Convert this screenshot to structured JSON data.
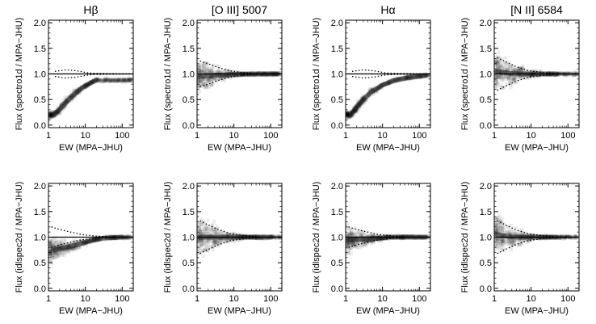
{
  "chart_data": [
    {
      "type": "heatmap",
      "title": "Hβ",
      "xlabel": "EW (MPA−JHU)",
      "ylabel": "Flux (spectro1d / MPA−JHU)",
      "xscale": "log",
      "xlim": [
        1,
        200
      ],
      "ylim": [
        -0.05,
        2.05
      ],
      "xticks": [
        "1",
        "10",
        "100"
      ],
      "yticks": [
        "0.0",
        "0.5",
        "1.0",
        "1.5",
        "2.0"
      ],
      "reference_line": 1.0,
      "ridge": [
        {
          "x": 1.4,
          "y": 0.2
        },
        {
          "x": 2,
          "y": 0.3
        },
        {
          "x": 3,
          "y": 0.45
        },
        {
          "x": 5,
          "y": 0.6
        },
        {
          "x": 8,
          "y": 0.72
        },
        {
          "x": 12,
          "y": 0.8
        },
        {
          "x": 20,
          "y": 0.88
        }
      ],
      "envelope_upper": [
        {
          "x": 1.5,
          "y": 1.05
        },
        {
          "x": 3,
          "y": 1.08
        },
        {
          "x": 6,
          "y": 1.06
        },
        {
          "x": 12,
          "y": 1.02
        },
        {
          "x": 20,
          "y": 1.01
        },
        {
          "x": 200,
          "y": 1.0
        }
      ],
      "envelope_lower": [
        {
          "x": 1.5,
          "y": 0.95
        },
        {
          "x": 3,
          "y": 0.92
        },
        {
          "x": 6,
          "y": 0.94
        },
        {
          "x": 12,
          "y": 0.98
        },
        {
          "x": 20,
          "y": 0.99
        },
        {
          "x": 200,
          "y": 1.0
        }
      ]
    },
    {
      "type": "heatmap",
      "title": "[O III] 5007",
      "xlabel": "EW (MPA−JHU)",
      "ylabel": "Flux (spectro1d / MPA−JHU)",
      "xscale": "log",
      "xlim": [
        1,
        200
      ],
      "ylim": [
        -0.05,
        2.05
      ],
      "xticks": [
        "1",
        "10",
        "100"
      ],
      "yticks": [
        "0.0",
        "0.5",
        "1.0",
        "1.5",
        "2.0"
      ],
      "reference_line": 1.0,
      "ridge": [
        {
          "x": 1.2,
          "y": 0.95
        },
        {
          "x": 3,
          "y": 0.97
        },
        {
          "x": 8,
          "y": 0.99
        },
        {
          "x": 30,
          "y": 1.0
        },
        {
          "x": 150,
          "y": 1.0
        }
      ],
      "envelope_upper": [
        {
          "x": 1.2,
          "y": 1.25
        },
        {
          "x": 2,
          "y": 1.2
        },
        {
          "x": 4,
          "y": 1.12
        },
        {
          "x": 8,
          "y": 1.06
        },
        {
          "x": 20,
          "y": 1.02
        },
        {
          "x": 60,
          "y": 1.0
        },
        {
          "x": 200,
          "y": 1.0
        }
      ],
      "envelope_lower": [
        {
          "x": 1.2,
          "y": 0.75
        },
        {
          "x": 2,
          "y": 0.8
        },
        {
          "x": 4,
          "y": 0.88
        },
        {
          "x": 8,
          "y": 0.94
        },
        {
          "x": 20,
          "y": 0.98
        },
        {
          "x": 60,
          "y": 1.0
        },
        {
          "x": 200,
          "y": 1.0
        }
      ]
    },
    {
      "type": "heatmap",
      "title": "Hα",
      "xlabel": "EW (MPA−JHU)",
      "ylabel": "Flux (spectro1d / MPA−JHU)",
      "xscale": "log",
      "xlim": [
        1,
        200
      ],
      "ylim": [
        -0.05,
        2.05
      ],
      "xticks": [
        "1",
        "10",
        "100"
      ],
      "yticks": [
        "0.0",
        "0.5",
        "1.0",
        "1.5",
        "2.0"
      ],
      "reference_line": 1.0,
      "ridge": [
        {
          "x": 1.4,
          "y": 0.2
        },
        {
          "x": 2,
          "y": 0.35
        },
        {
          "x": 3,
          "y": 0.5
        },
        {
          "x": 5,
          "y": 0.65
        },
        {
          "x": 10,
          "y": 0.78
        },
        {
          "x": 20,
          "y": 0.87
        },
        {
          "x": 50,
          "y": 0.93
        },
        {
          "x": 150,
          "y": 0.97
        }
      ],
      "envelope_upper": [
        {
          "x": 1.5,
          "y": 1.05
        },
        {
          "x": 3,
          "y": 1.08
        },
        {
          "x": 6,
          "y": 1.06
        },
        {
          "x": 12,
          "y": 1.02
        },
        {
          "x": 20,
          "y": 1.01
        },
        {
          "x": 200,
          "y": 1.0
        }
      ],
      "envelope_lower": [
        {
          "x": 1.5,
          "y": 0.95
        },
        {
          "x": 3,
          "y": 0.92
        },
        {
          "x": 6,
          "y": 0.94
        },
        {
          "x": 12,
          "y": 0.98
        },
        {
          "x": 20,
          "y": 0.99
        },
        {
          "x": 200,
          "y": 1.0
        }
      ]
    },
    {
      "type": "heatmap",
      "title": "[N II] 6584",
      "xlabel": "EW (MPA−JHU)",
      "ylabel": "Flux (spectro1d / MPA−JHU)",
      "xscale": "log",
      "xlim": [
        1,
        200
      ],
      "ylim": [
        -0.05,
        2.05
      ],
      "xticks": [
        "1",
        "10",
        "100"
      ],
      "yticks": [
        "0.0",
        "0.5",
        "1.0",
        "1.5",
        "2.0"
      ],
      "reference_line": 1.0,
      "ridge": [
        {
          "x": 1.2,
          "y": 1.05
        },
        {
          "x": 2,
          "y": 1.02
        },
        {
          "x": 4,
          "y": 1.0
        },
        {
          "x": 10,
          "y": 1.0
        },
        {
          "x": 50,
          "y": 1.0
        }
      ],
      "envelope_upper": [
        {
          "x": 1.2,
          "y": 1.32
        },
        {
          "x": 2,
          "y": 1.24
        },
        {
          "x": 4,
          "y": 1.14
        },
        {
          "x": 8,
          "y": 1.07
        },
        {
          "x": 20,
          "y": 1.03
        },
        {
          "x": 60,
          "y": 1.0
        },
        {
          "x": 200,
          "y": 1.0
        }
      ],
      "envelope_lower": [
        {
          "x": 1.2,
          "y": 0.68
        },
        {
          "x": 2,
          "y": 0.76
        },
        {
          "x": 4,
          "y": 0.86
        },
        {
          "x": 8,
          "y": 0.93
        },
        {
          "x": 20,
          "y": 0.97
        },
        {
          "x": 60,
          "y": 1.0
        },
        {
          "x": 200,
          "y": 1.0
        }
      ]
    },
    {
      "type": "heatmap",
      "title": "",
      "xlabel": "EW (MPA−JHU)",
      "ylabel": "Flux (idlspec2d / MPA−JHU)",
      "xscale": "log",
      "xlim": [
        1,
        200
      ],
      "ylim": [
        -0.05,
        2.05
      ],
      "xticks": [
        "1",
        "10",
        "100"
      ],
      "yticks": [
        "0.0",
        "0.5",
        "1.0",
        "1.5",
        "2.0"
      ],
      "reference_line": 1.0,
      "ridge": [
        {
          "x": 1.5,
          "y": 0.75
        },
        {
          "x": 3,
          "y": 0.8
        },
        {
          "x": 6,
          "y": 0.85
        },
        {
          "x": 12,
          "y": 0.92
        },
        {
          "x": 30,
          "y": 0.98
        },
        {
          "x": 100,
          "y": 1.0
        }
      ],
      "envelope_upper": [
        {
          "x": 1.2,
          "y": 1.2
        },
        {
          "x": 2,
          "y": 1.15
        },
        {
          "x": 4,
          "y": 1.1
        },
        {
          "x": 8,
          "y": 1.05
        },
        {
          "x": 20,
          "y": 1.02
        },
        {
          "x": 60,
          "y": 1.0
        },
        {
          "x": 200,
          "y": 1.0
        }
      ],
      "envelope_lower": [
        {
          "x": 1.2,
          "y": 0.8
        },
        {
          "x": 2,
          "y": 0.85
        },
        {
          "x": 4,
          "y": 0.9
        },
        {
          "x": 8,
          "y": 0.95
        },
        {
          "x": 20,
          "y": 0.98
        },
        {
          "x": 60,
          "y": 1.0
        },
        {
          "x": 200,
          "y": 1.0
        }
      ]
    },
    {
      "type": "heatmap",
      "title": "",
      "xlabel": "EW (MPA−JHU)",
      "ylabel": "Flux (idlspec2d / MPA−JHU)",
      "xscale": "log",
      "xlim": [
        1,
        200
      ],
      "ylim": [
        -0.05,
        2.05
      ],
      "xticks": [
        "1",
        "10",
        "100"
      ],
      "yticks": [
        "0.0",
        "0.5",
        "1.0",
        "1.5",
        "2.0"
      ],
      "reference_line": 1.0,
      "ridge": [
        {
          "x": 1.2,
          "y": 1.0
        },
        {
          "x": 4,
          "y": 1.0
        },
        {
          "x": 20,
          "y": 1.0
        },
        {
          "x": 100,
          "y": 1.0
        }
      ],
      "envelope_upper": [
        {
          "x": 1.2,
          "y": 1.32
        },
        {
          "x": 2,
          "y": 1.24
        },
        {
          "x": 4,
          "y": 1.14
        },
        {
          "x": 8,
          "y": 1.07
        },
        {
          "x": 20,
          "y": 1.03
        },
        {
          "x": 60,
          "y": 1.0
        },
        {
          "x": 200,
          "y": 1.0
        }
      ],
      "envelope_lower": [
        {
          "x": 1.2,
          "y": 0.68
        },
        {
          "x": 2,
          "y": 0.76
        },
        {
          "x": 4,
          "y": 0.86
        },
        {
          "x": 8,
          "y": 0.93
        },
        {
          "x": 20,
          "y": 0.97
        },
        {
          "x": 60,
          "y": 1.0
        },
        {
          "x": 200,
          "y": 1.0
        }
      ]
    },
    {
      "type": "heatmap",
      "title": "",
      "xlabel": "EW (MPA−JHU)",
      "ylabel": "Flux (idlspec2d / MPA−JHU)",
      "xscale": "log",
      "xlim": [
        1,
        200
      ],
      "ylim": [
        -0.05,
        2.05
      ],
      "xticks": [
        "1",
        "10",
        "100"
      ],
      "yticks": [
        "0.0",
        "0.5",
        "1.0",
        "1.5",
        "2.0"
      ],
      "reference_line": 1.0,
      "ridge": [
        {
          "x": 1.2,
          "y": 0.95
        },
        {
          "x": 3,
          "y": 0.96
        },
        {
          "x": 8,
          "y": 0.98
        },
        {
          "x": 15,
          "y": 1.0
        },
        {
          "x": 60,
          "y": 1.0
        },
        {
          "x": 150,
          "y": 1.0
        }
      ],
      "envelope_upper": [
        {
          "x": 1.2,
          "y": 1.2
        },
        {
          "x": 2,
          "y": 1.15
        },
        {
          "x": 4,
          "y": 1.1
        },
        {
          "x": 8,
          "y": 1.05
        },
        {
          "x": 20,
          "y": 1.02
        },
        {
          "x": 60,
          "y": 1.0
        },
        {
          "x": 200,
          "y": 1.0
        }
      ],
      "envelope_lower": [
        {
          "x": 1.2,
          "y": 0.8
        },
        {
          "x": 2,
          "y": 0.85
        },
        {
          "x": 4,
          "y": 0.9
        },
        {
          "x": 8,
          "y": 0.95
        },
        {
          "x": 20,
          "y": 0.98
        },
        {
          "x": 60,
          "y": 1.0
        },
        {
          "x": 200,
          "y": 1.0
        }
      ]
    },
    {
      "type": "heatmap",
      "title": "",
      "xlabel": "EW (MPA−JHU)",
      "ylabel": "Flux (idlspec2d / MPA−JHU)",
      "xscale": "log",
      "xlim": [
        1,
        200
      ],
      "ylim": [
        -0.05,
        2.05
      ],
      "xticks": [
        "1",
        "10",
        "100"
      ],
      "yticks": [
        "0.0",
        "0.5",
        "1.0",
        "1.5",
        "2.0"
      ],
      "reference_line": 1.0,
      "ridge": [
        {
          "x": 1.2,
          "y": 1.05
        },
        {
          "x": 2,
          "y": 1.02
        },
        {
          "x": 4,
          "y": 1.0
        },
        {
          "x": 10,
          "y": 1.0
        },
        {
          "x": 50,
          "y": 1.0
        }
      ],
      "envelope_upper": [
        {
          "x": 1.2,
          "y": 1.32
        },
        {
          "x": 2,
          "y": 1.24
        },
        {
          "x": 4,
          "y": 1.14
        },
        {
          "x": 8,
          "y": 1.07
        },
        {
          "x": 20,
          "y": 1.03
        },
        {
          "x": 60,
          "y": 1.0
        },
        {
          "x": 200,
          "y": 1.0
        }
      ],
      "envelope_lower": [
        {
          "x": 1.2,
          "y": 0.68
        },
        {
          "x": 2,
          "y": 0.76
        },
        {
          "x": 4,
          "y": 0.86
        },
        {
          "x": 8,
          "y": 0.93
        },
        {
          "x": 20,
          "y": 0.97
        },
        {
          "x": 60,
          "y": 1.0
        },
        {
          "x": 200,
          "y": 1.0
        }
      ]
    }
  ]
}
